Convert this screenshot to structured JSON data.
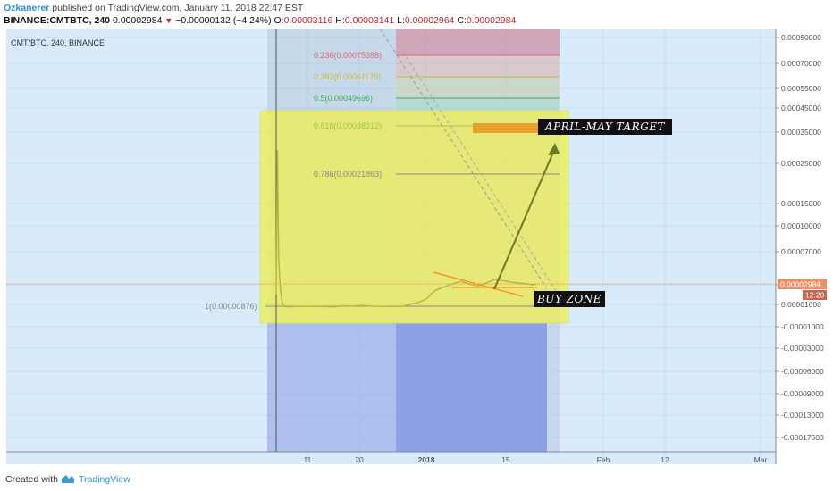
{
  "header": {
    "author": "Ozkanerer",
    "published": "published on TradingView.com, January 11, 2018 22:47 EST",
    "symbol": "BINANCE:CMTBTC, 240",
    "last": "0.00002984",
    "change": "−0.00000132 (−4.24%)",
    "o_label": "O:",
    "o_value": "0.00003116",
    "h_label": "H:",
    "h_value": "0.00003141",
    "l_label": "L:",
    "l_value": "0.00002964",
    "c_label": "C:",
    "c_value": "0.00002984"
  },
  "footer": {
    "created_with": "Created with",
    "brand": "TradingView"
  },
  "icons": {
    "down-arrow": "down-triangle-icon",
    "brand-logo": "tradingview-cloud-icon"
  },
  "colors": {
    "background": "#d9ebfb",
    "price_line": "#e8906a",
    "yellow_zone": "#eeee55",
    "target_bar": "#e8a030",
    "arrow": "#6b7a22",
    "trend_line": "#ff8a1f",
    "blue_zone": "#9aabee"
  },
  "chart_data": {
    "type": "line",
    "title": "CMT/BTC, 240, BINANCE",
    "x_ticks": [
      "11",
      "20",
      "2018",
      "15",
      "Feb",
      "12",
      "Mar"
    ],
    "y_ticks": [
      "0.00090000",
      "0.00070000",
      "0.00055000",
      "0.00045000",
      "0.00035000",
      "0.00025000",
      "0.00015000",
      "0.00010000",
      "0.00007000",
      "0.00003000",
      "0.00001000",
      "-0.00001000",
      "-0.00003000",
      "-0.00006000",
      "-0.00009000",
      "-0.00013000",
      "-0.00017500"
    ],
    "last_price_label": "0.00002984",
    "countdown_label": "12:20",
    "fib_levels": [
      {
        "label": "0.236(0.00075388)",
        "color": "#e06666"
      },
      {
        "label": "0.382(0.00061179)",
        "color": "#c8b840"
      },
      {
        "label": "0.5(0.00049696)",
        "color": "#3faa5a"
      },
      {
        "label": "0.618(0.00038312)",
        "color": "#a8c050"
      },
      {
        "label": "0.786(0.00021863)",
        "color": "#8a8a8a"
      },
      {
        "label": "1(0.00000876)",
        "color": "#8a8a8a"
      }
    ],
    "annotations": {
      "target": "APRIL-MAY TARGET",
      "buy_zone": "BUY ZONE"
    },
    "series": [
      {
        "x": [
          0.0,
          0.3,
          0.6,
          1.0,
          1.5,
          2.0,
          2.5,
          3.0,
          4,
          5,
          6,
          8,
          10,
          12,
          14,
          16,
          18,
          20,
          22,
          24,
          26,
          27,
          28,
          30,
          32,
          34,
          35,
          36,
          37,
          38,
          40,
          42,
          44,
          46,
          48,
          50,
          52,
          54,
          56,
          58,
          60,
          61,
          62
        ],
        "y": [
          2e-05,
          0.00019,
          6e-05,
          2.5e-05,
          1.15e-05,
          9e-06,
          8.5e-06,
          8.8e-06,
          8.7e-06,
          9.1e-06,
          9e-06,
          9e-06,
          9e-06,
          8.8e-06,
          8.5e-06,
          9.5e-06,
          9.2e-06,
          9.8e-06,
          9.4e-06,
          9e-06,
          9e-06,
          9.2e-06,
          8.9e-06,
          9e-06,
          1.1e-05,
          1.3e-05,
          1.45e-05,
          1.65e-05,
          2.1e-05,
          2.4e-05,
          2.7e-05,
          3e-05,
          3.3e-05,
          3e-05,
          2.8e-05,
          3.1e-05,
          3.5e-05,
          3.4e-05,
          3.2e-05,
          3.1e-05,
          3e-05,
          2.9e-05,
          2.984e-05
        ]
      }
    ]
  }
}
